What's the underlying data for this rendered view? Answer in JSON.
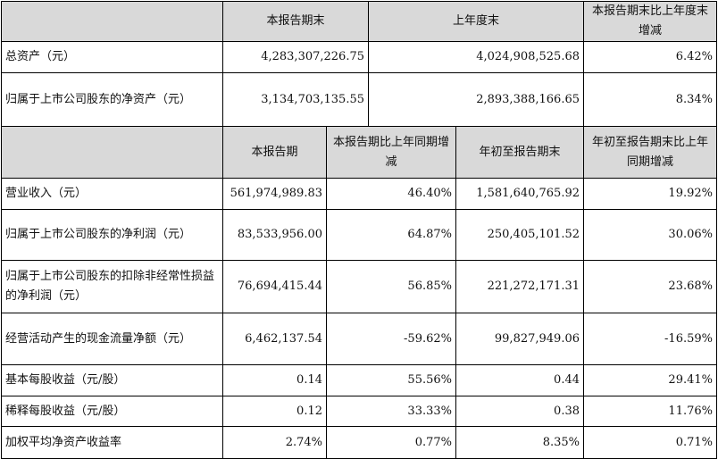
{
  "section1": {
    "headers": [
      "",
      "本报告期末",
      "上年度末",
      "本报告期末比上年度末增减"
    ],
    "rows": [
      {
        "label": "总资产（元）",
        "current": "4,283,307,226.75",
        "prior": "4,024,908,525.68",
        "change": "6.42%"
      },
      {
        "label": "归属于上市公司股东的净资产（元）",
        "current": "3,134,703,135.55",
        "prior": "2,893,388,166.65",
        "change": "8.34%"
      }
    ]
  },
  "section2": {
    "headers": [
      "",
      "本报告期",
      "本报告期比上年同期增减",
      "年初至报告期末",
      "年初至报告期末比上年同期增减"
    ],
    "rows": [
      {
        "label": "营业收入（元）",
        "period": "561,974,989.83",
        "period_change": "46.40%",
        "ytd": "1,581,640,765.92",
        "ytd_change": "19.92%"
      },
      {
        "label": "归属于上市公司股东的净利润（元）",
        "period": "83,533,956.00",
        "period_change": "64.87%",
        "ytd": "250,405,101.52",
        "ytd_change": "30.06%"
      },
      {
        "label": "归属于上市公司股东的扣除非经常性损益的净利润（元）",
        "period": "76,694,415.44",
        "period_change": "56.85%",
        "ytd": "221,272,171.31",
        "ytd_change": "23.68%"
      },
      {
        "label": "经营活动产生的现金流量净额（元）",
        "period": "6,462,137.54",
        "period_change": "-59.62%",
        "ytd": "99,827,949.06",
        "ytd_change": "-16.59%"
      },
      {
        "label": "基本每股收益（元/股）",
        "period": "0.14",
        "period_change": "55.56%",
        "ytd": "0.44",
        "ytd_change": "29.41%"
      },
      {
        "label": "稀释每股收益（元/股）",
        "period": "0.12",
        "period_change": "33.33%",
        "ytd": "0.38",
        "ytd_change": "11.76%"
      },
      {
        "label": "加权平均净资产收益率",
        "period": "2.74%",
        "period_change": "0.77%",
        "ytd": "8.35%",
        "ytd_change": "0.71%"
      }
    ]
  }
}
